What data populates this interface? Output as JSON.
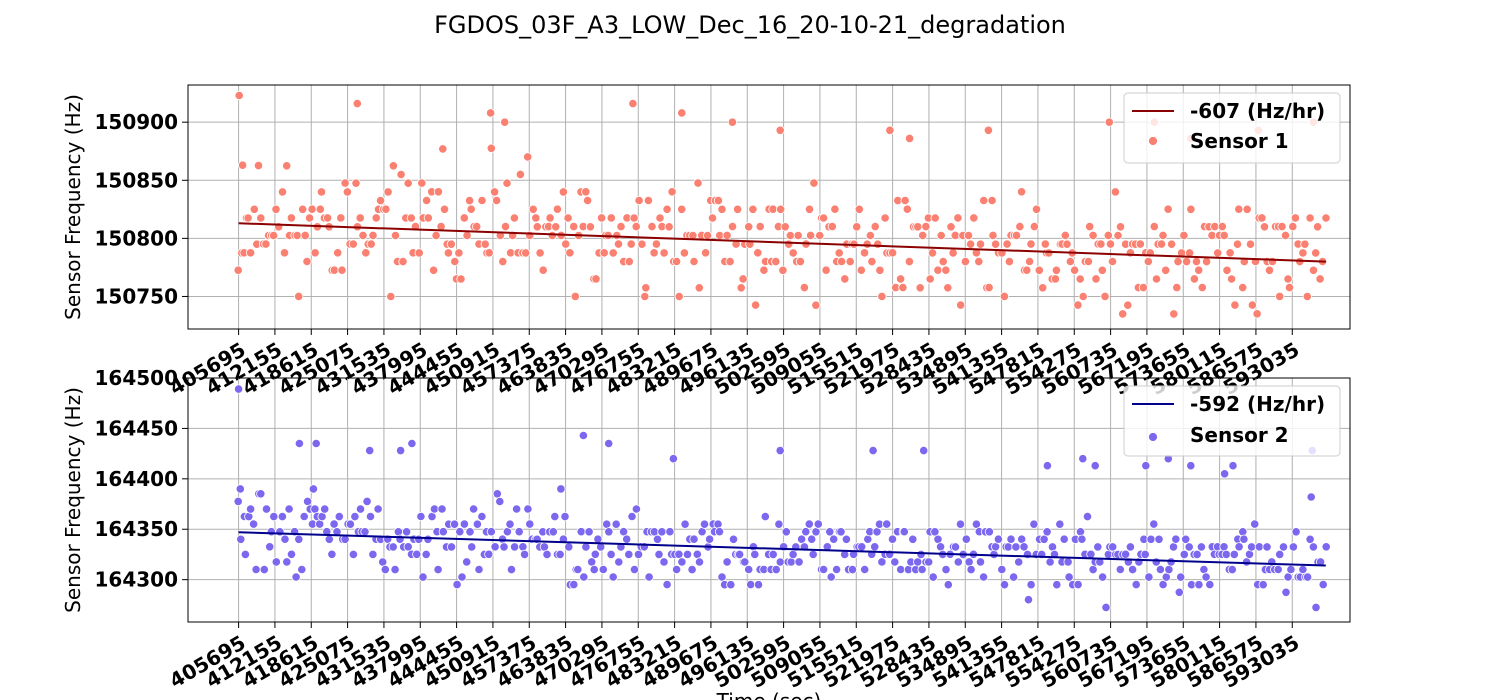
{
  "figure": {
    "suptitle": "FGDOS_03F_A3_LOW_Dec_16_20-10-21_degradation",
    "xlabel": "Time (sec)"
  },
  "chart_data": [
    {
      "type": "scatter",
      "ylabel": "Sensor Frequency (Hz)",
      "ylim": [
        150722,
        150932
      ],
      "yticks": [
        150750,
        150800,
        150850,
        150900
      ],
      "xticks": [
        405695,
        412155,
        418615,
        425075,
        431535,
        437995,
        444455,
        450915,
        457375,
        463835,
        470295,
        476755,
        483215,
        489675,
        496135,
        502595,
        509055,
        515515,
        521975,
        528435,
        534895,
        541355,
        547815,
        554275,
        560735,
        567195,
        573655,
        580115,
        586575,
        593035
      ],
      "xlim": [
        396700,
        603300
      ],
      "grid": true,
      "legend_position": "top-right",
      "series": [
        {
          "name": "-607 (Hz/hr)",
          "kind": "fit_line",
          "color": "#8b0000",
          "x": [
            405695,
            599000
          ],
          "y": [
            150813,
            150780
          ]
        },
        {
          "name": "Sensor 1",
          "kind": "points",
          "color": "#fa8072",
          "seed": 11,
          "n": 430,
          "x_range": [
            405695,
            599000
          ],
          "trend": [
            150813,
            150780
          ],
          "spread": 24,
          "low_clip": 150732,
          "outliers": [
            [
              405800,
              150923
            ],
            [
              406400,
              150863
            ],
            [
              426800,
              150916
            ],
            [
              442000,
              150877
            ],
            [
              450500,
              150908
            ],
            [
              453000,
              150900
            ],
            [
              475800,
              150916
            ],
            [
              484500,
              150908
            ],
            [
              493500,
              150900
            ],
            [
              502000,
              150893
            ],
            [
              521500,
              150893
            ],
            [
              525000,
              150886
            ],
            [
              539000,
              150893
            ],
            [
              560500,
              150900
            ],
            [
              568500,
              150900
            ],
            [
              575000,
              150886
            ],
            [
              587000,
              150893
            ],
            [
              596800,
              150900
            ]
          ]
        }
      ]
    },
    {
      "type": "scatter",
      "ylabel": "Sensor Frequency (Hz)",
      "ylim": [
        164258,
        164500
      ],
      "yticks": [
        164300,
        164350,
        164400,
        164450,
        164500
      ],
      "xticks": [
        405695,
        412155,
        418615,
        425075,
        431535,
        437995,
        444455,
        450915,
        457375,
        463835,
        470295,
        476755,
        483215,
        489675,
        496135,
        502595,
        509055,
        515515,
        521975,
        528435,
        534895,
        541355,
        547815,
        554275,
        560735,
        567195,
        573655,
        580115,
        586575,
        593035
      ],
      "xlim": [
        396700,
        603300
      ],
      "grid": true,
      "legend_position": "top-right",
      "series": [
        {
          "name": "-592 (Hz/hr)",
          "kind": "fit_line",
          "color": "#00008b",
          "x": [
            405695,
            599000
          ],
          "y": [
            164347,
            164314
          ]
        },
        {
          "name": "Sensor 2",
          "kind": "points",
          "color": "#7b68ee",
          "seed": 29,
          "n": 430,
          "x_range": [
            405695,
            599000
          ],
          "trend": [
            164347,
            164314
          ],
          "spread": 18,
          "low_clip": 164268,
          "outliers": [
            [
              405695,
              164489
            ],
            [
              406000,
              164390
            ],
            [
              416500,
              164435
            ],
            [
              419500,
              164435
            ],
            [
              419000,
              164390
            ],
            [
              429000,
              164428
            ],
            [
              434500,
              164428
            ],
            [
              436500,
              164435
            ],
            [
              463000,
              164390
            ],
            [
              467000,
              164443
            ],
            [
              471500,
              164435
            ],
            [
              483000,
              164420
            ],
            [
              502000,
              164428
            ],
            [
              518500,
              164428
            ],
            [
              527500,
              164428
            ],
            [
              549500,
              164413
            ],
            [
              555800,
              164420
            ],
            [
              558000,
              164413
            ],
            [
              567000,
              164413
            ],
            [
              571000,
              164420
            ],
            [
              575000,
              164413
            ],
            [
              581000,
              164405
            ],
            [
              582500,
              164413
            ],
            [
              596600,
              164428
            ],
            [
              596400,
              164382
            ]
          ]
        }
      ]
    }
  ]
}
